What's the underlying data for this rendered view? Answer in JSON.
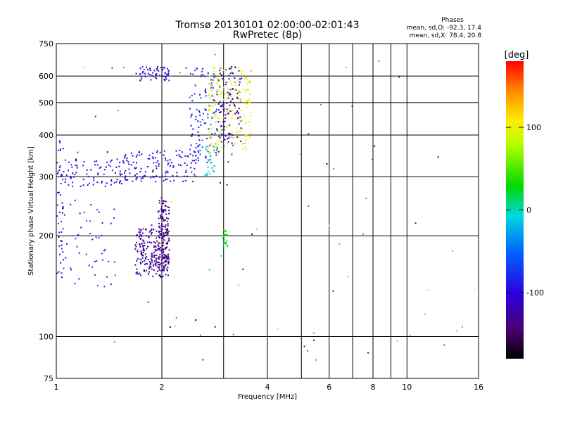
{
  "chart_data": {
    "type": "scatter",
    "title": "Tromsø 20130101 02:00:00-02:01:43",
    "subtitle": "RwPretec (8p)",
    "xlabel": "Frequency [MHz]",
    "ylabel": "Stationary phase Virtual Height [km]",
    "x_scale": "log",
    "y_scale": "log",
    "xlim": [
      1,
      16
    ],
    "ylim": [
      75,
      750
    ],
    "x_ticks": [
      1,
      2,
      4,
      6,
      8,
      10,
      16
    ],
    "x_minor_gridlines": [
      3,
      5,
      7,
      9
    ],
    "y_ticks": [
      75,
      100,
      200,
      300,
      400,
      500,
      600,
      750
    ],
    "grid": true,
    "info": {
      "heading": "Phases",
      "line1": "mean, sd,O: -92.3, 17.4",
      "line2": "mean, sd,X:  78.4, 20.8"
    },
    "colorbar": {
      "label": "[deg]",
      "ticks": [
        100,
        0,
        -100
      ],
      "range": [
        -180,
        180
      ],
      "colormap": "rainbow (black→purple→blue→cyan→green→yellow→orange→red)"
    },
    "clusters": [
      {
        "name": "low trace",
        "freq": [
          1.0,
          1.05
        ],
        "height": [
          150,
          390
        ],
        "n": 55,
        "phase": [
          -120,
          -70
        ]
      },
      {
        "name": "low band",
        "freq": [
          1.05,
          1.55
        ],
        "height": [
          280,
          340
        ],
        "n": 80,
        "phase": [
          -115,
          -70
        ]
      },
      {
        "name": "low spread",
        "freq": [
          1.05,
          1.5
        ],
        "height": [
          140,
          250
        ],
        "n": 45,
        "phase": [
          -110,
          -60
        ]
      },
      {
        "name": "F trace",
        "freq": [
          1.55,
          2.5
        ],
        "height": [
          290,
          360
        ],
        "n": 130,
        "phase": [
          -120,
          -80
        ]
      },
      {
        "name": "dense lower",
        "freq": [
          1.68,
          2.1
        ],
        "height": [
          150,
          210
        ],
        "n": 230,
        "phase": [
          -150,
          -100
        ]
      },
      {
        "name": "column 2 MHz",
        "freq": [
          1.95,
          2.1
        ],
        "height": [
          160,
          260
        ],
        "n": 120,
        "phase": [
          -155,
          -120
        ]
      },
      {
        "name": "top arc",
        "freq": [
          1.7,
          2.1
        ],
        "height": [
          580,
          640
        ],
        "n": 60,
        "phase": [
          -115,
          -80
        ]
      },
      {
        "name": "F rise",
        "freq": [
          2.4,
          3.2
        ],
        "height": [
          330,
          640
        ],
        "n": 150,
        "phase": [
          -110,
          -40
        ]
      },
      {
        "name": "purple trace",
        "freq": [
          2.9,
          3.4
        ],
        "height": [
          380,
          640
        ],
        "n": 90,
        "phase": [
          -150,
          -100
        ]
      },
      {
        "name": "X trace",
        "freq": [
          2.7,
          3.6
        ],
        "height": [
          350,
          640
        ],
        "n": 170,
        "phase": [
          80,
          130
        ]
      },
      {
        "name": "green blob",
        "freq": [
          2.98,
          3.08
        ],
        "height": [
          185,
          210
        ],
        "n": 22,
        "phase": [
          20,
          40
        ]
      },
      {
        "name": "mid patch",
        "freq": [
          2.65,
          2.85
        ],
        "height": [
          300,
          380
        ],
        "n": 25,
        "phase": [
          -30,
          10
        ]
      },
      {
        "name": "scatter",
        "freq": [
          1.0,
          16.0
        ],
        "height": [
          75,
          700
        ],
        "n": 80,
        "phase": [
          -180,
          180
        ]
      }
    ]
  }
}
